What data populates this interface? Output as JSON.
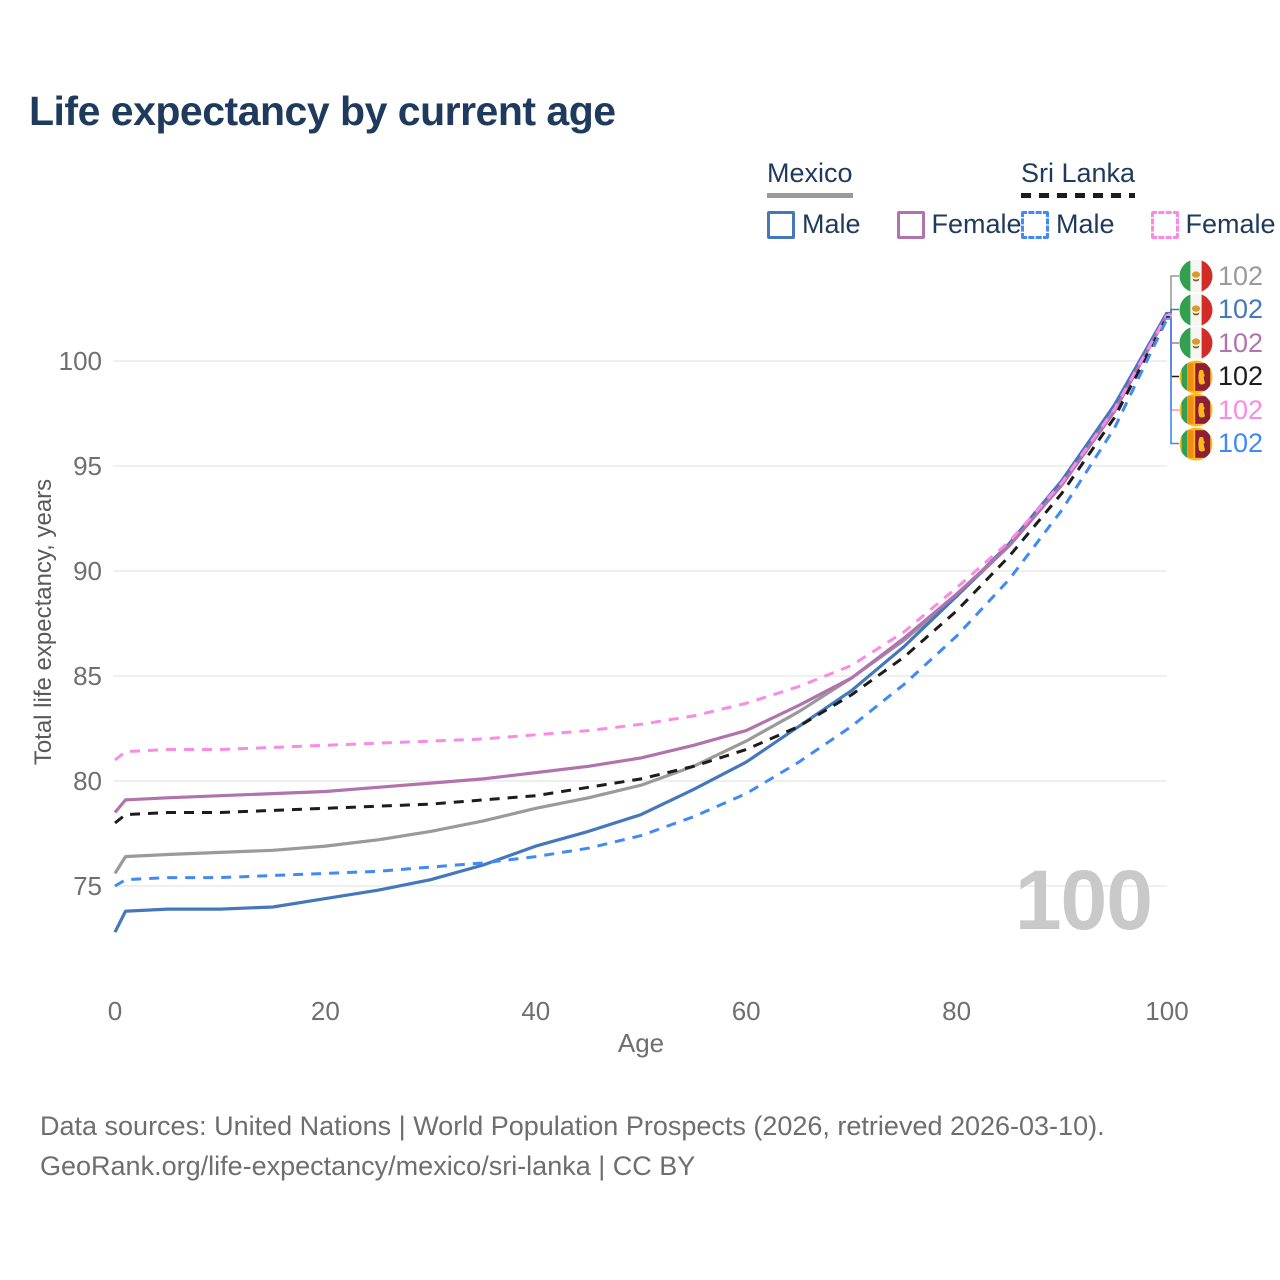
{
  "title": "Life expectancy by current age",
  "watermark": "100",
  "legend": {
    "groups": [
      {
        "label": "Mexico",
        "line_style": "solid",
        "line_color": "#9a9a9a",
        "items": [
          {
            "label": "Male",
            "color": "#4477bb",
            "dashed": false
          },
          {
            "label": "Female",
            "color": "#b173ae",
            "dashed": false
          }
        ]
      },
      {
        "label": "Sri Lanka",
        "line_style": "dashed",
        "line_color": "#1c1c1c",
        "items": [
          {
            "label": "Male",
            "color": "#4189f4",
            "dashed": true
          },
          {
            "label": "Female",
            "color": "#fb8ae4",
            "dashed": true
          }
        ]
      }
    ]
  },
  "chart_data": {
    "type": "line",
    "title": "Life expectancy by current age",
    "xlabel": "Age",
    "ylabel": "Total life expectancy, years",
    "xlim": [
      0,
      100
    ],
    "ylim": [
      72,
      103
    ],
    "xticks": [
      0,
      20,
      40,
      60,
      80,
      100
    ],
    "yticks": [
      75,
      80,
      85,
      90,
      95,
      100
    ],
    "grid": "horizontal",
    "legend_position": "top-right",
    "x": [
      0,
      1,
      5,
      10,
      15,
      20,
      25,
      30,
      35,
      40,
      45,
      50,
      55,
      60,
      65,
      70,
      75,
      80,
      85,
      90,
      95,
      100
    ],
    "series": [
      {
        "name": "Mexico Total",
        "country": "Mexico",
        "sex": "Total",
        "color": "#9a9a9a",
        "dashed": false,
        "end_label": "102",
        "values": [
          75.6,
          76.4,
          76.5,
          76.6,
          76.7,
          76.9,
          77.2,
          77.6,
          78.1,
          78.7,
          79.2,
          79.8,
          80.7,
          81.9,
          83.3,
          84.9,
          86.7,
          88.8,
          91.2,
          94.1,
          97.6,
          102.2
        ]
      },
      {
        "name": "Mexico Male",
        "country": "Mexico",
        "sex": "Male",
        "color": "#4477bb",
        "dashed": false,
        "end_label": "102",
        "values": [
          72.8,
          73.8,
          73.9,
          73.9,
          74.0,
          74.4,
          74.8,
          75.3,
          76.0,
          76.9,
          77.6,
          78.4,
          79.6,
          80.9,
          82.6,
          84.3,
          86.4,
          88.8,
          91.3,
          94.3,
          97.9,
          102.3
        ]
      },
      {
        "name": "Mexico Female",
        "country": "Mexico",
        "sex": "Female",
        "color": "#b173ae",
        "dashed": false,
        "end_label": "102",
        "values": [
          78.5,
          79.1,
          79.2,
          79.3,
          79.4,
          79.5,
          79.7,
          79.9,
          80.1,
          80.4,
          80.7,
          81.1,
          81.7,
          82.4,
          83.6,
          84.9,
          86.8,
          88.9,
          91.2,
          94.1,
          97.6,
          102.2
        ]
      },
      {
        "name": "Sri Lanka Total",
        "country": "Sri Lanka",
        "sex": "Total",
        "color": "#1c1c1c",
        "dashed": true,
        "end_label": "102",
        "values": [
          78.0,
          78.4,
          78.5,
          78.5,
          78.6,
          78.7,
          78.8,
          78.9,
          79.1,
          79.3,
          79.7,
          80.1,
          80.7,
          81.5,
          82.6,
          84.1,
          85.9,
          88.1,
          90.7,
          93.7,
          97.3,
          102.1
        ]
      },
      {
        "name": "Sri Lanka Female",
        "country": "Sri Lanka",
        "sex": "Female",
        "color": "#fb8ae4",
        "dashed": true,
        "end_label": "102",
        "values": [
          81.0,
          81.4,
          81.5,
          81.5,
          81.6,
          81.7,
          81.8,
          81.9,
          82.0,
          82.2,
          82.4,
          82.7,
          83.1,
          83.7,
          84.5,
          85.5,
          87.1,
          89.2,
          91.4,
          94.2,
          97.7,
          102.2
        ]
      },
      {
        "name": "Sri Lanka Male",
        "country": "Sri Lanka",
        "sex": "Male",
        "color": "#4189f4",
        "dashed": true,
        "end_label": "102",
        "values": [
          75.0,
          75.3,
          75.4,
          75.4,
          75.5,
          75.6,
          75.7,
          75.9,
          76.1,
          76.4,
          76.8,
          77.4,
          78.3,
          79.4,
          80.9,
          82.6,
          84.6,
          86.9,
          89.6,
          92.9,
          96.8,
          102.0
        ]
      }
    ]
  },
  "end_labels": [
    {
      "country": "Mexico",
      "series": "Total",
      "flag": "mexico",
      "value": "102",
      "color": "#9a9a9a"
    },
    {
      "country": "Mexico",
      "series": "Male",
      "flag": "mexico",
      "value": "102",
      "color": "#4477bb"
    },
    {
      "country": "Mexico",
      "series": "Female",
      "flag": "mexico",
      "value": "102",
      "color": "#b173ae"
    },
    {
      "country": "Sri Lanka",
      "series": "Total",
      "flag": "sri-lanka",
      "value": "102",
      "color": "#1c1c1c"
    },
    {
      "country": "Sri Lanka",
      "series": "Female",
      "flag": "sri-lanka",
      "value": "102",
      "color": "#fb8ae4"
    },
    {
      "country": "Sri Lanka",
      "series": "Male",
      "flag": "sri-lanka",
      "value": "102",
      "color": "#4189f4"
    }
  ],
  "footer": {
    "line1": "Data sources: United Nations | World Population Prospects (2026, retrieved 2026-03-10).",
    "line2": "GeoRank.org/life-expectancy/mexico/sri-lanka | CC BY"
  }
}
